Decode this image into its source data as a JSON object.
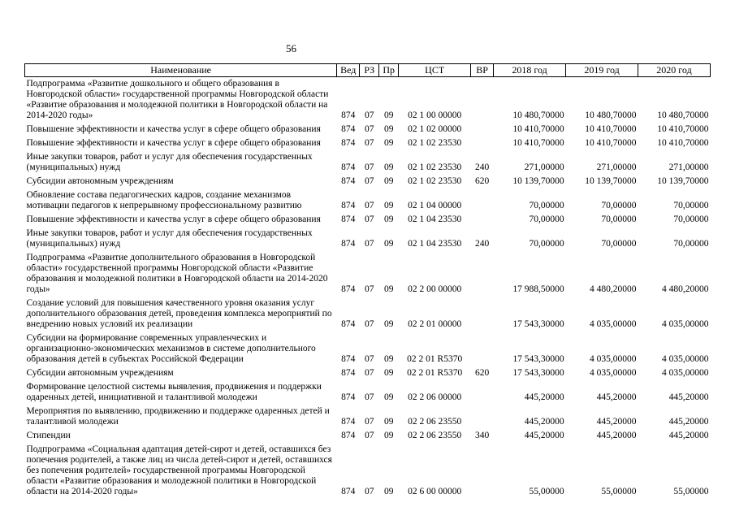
{
  "page": {
    "number": "56"
  },
  "table": {
    "headers": [
      "Наименование",
      "Вед",
      "РЗ",
      "Пр",
      "ЦСТ",
      "ВР",
      "2018 год",
      "2019 год",
      "2020 год"
    ],
    "rows": [
      {
        "name": "Подпрограмма «Развитие дошкольного и общего образования в Новгородской области» государственной программы Новгородской области «Развитие образования и молодежной политики в Новгородской области на 2014-2020 годы»",
        "ved": "874",
        "rz": "07",
        "pr": "09",
        "cst": "02 1 00 00000",
        "vr": "",
        "y2018": "10 480,70000",
        "y2019": "10 480,70000",
        "y2020": "10 480,70000"
      },
      {
        "name": "Повышение эффективности и качества услуг в сфере общего образования",
        "ved": "874",
        "rz": "07",
        "pr": "09",
        "cst": "02 1 02 00000",
        "vr": "",
        "y2018": "10 410,70000",
        "y2019": "10 410,70000",
        "y2020": "10 410,70000"
      },
      {
        "name": "Повышение эффективности и качества услуг в сфере общего образования",
        "ved": "874",
        "rz": "07",
        "pr": "09",
        "cst": "02 1 02 23530",
        "vr": "",
        "y2018": "10 410,70000",
        "y2019": "10 410,70000",
        "y2020": "10 410,70000"
      },
      {
        "name": "Иные закупки товаров, работ и услуг для обеспечения государственных (муниципальных) нужд",
        "ved": "874",
        "rz": "07",
        "pr": "09",
        "cst": "02 1 02 23530",
        "vr": "240",
        "y2018": "271,00000",
        "y2019": "271,00000",
        "y2020": "271,00000"
      },
      {
        "name": "Субсидии автономным учреждениям",
        "ved": "874",
        "rz": "07",
        "pr": "09",
        "cst": "02 1 02 23530",
        "vr": "620",
        "y2018": "10 139,70000",
        "y2019": "10 139,70000",
        "y2020": "10 139,70000"
      },
      {
        "name": "Обновление состава педагогических кадров, создание механизмов мотивации педагогов к непрерывному профессиональному развитию",
        "ved": "874",
        "rz": "07",
        "pr": "09",
        "cst": "02 1 04 00000",
        "vr": "",
        "y2018": "70,00000",
        "y2019": "70,00000",
        "y2020": "70,00000"
      },
      {
        "name": "Повышение эффективности и качества услуг в сфере общего образования",
        "ved": "874",
        "rz": "07",
        "pr": "09",
        "cst": "02 1 04 23530",
        "vr": "",
        "y2018": "70,00000",
        "y2019": "70,00000",
        "y2020": "70,00000"
      },
      {
        "name": "Иные закупки товаров, работ и услуг для обеспечения государственных (муниципальных) нужд",
        "ved": "874",
        "rz": "07",
        "pr": "09",
        "cst": "02 1 04 23530",
        "vr": "240",
        "y2018": "70,00000",
        "y2019": "70,00000",
        "y2020": "70,00000"
      },
      {
        "name": "Подпрограмма «Развитие дополнительного образования в Новгородской области» государственной программы Новгородской области «Развитие образования и молодежной политики в Новгородской области на 2014-2020 годы»",
        "ved": "874",
        "rz": "07",
        "pr": "09",
        "cst": "02 2 00 00000",
        "vr": "",
        "y2018": "17 988,50000",
        "y2019": "4 480,20000",
        "y2020": "4 480,20000"
      },
      {
        "name": "Создание условий для повышения качественного уровня оказания услуг дополнительного образования детей, проведения комплекса мероприятий по внедрению новых условий их реализации",
        "ved": "874",
        "rz": "07",
        "pr": "09",
        "cst": "02 2 01 00000",
        "vr": "",
        "y2018": "17 543,30000",
        "y2019": "4 035,00000",
        "y2020": "4 035,00000"
      },
      {
        "name": "Субсидии на формирование современных управленческих и организационно-экономических механизмов в системе дополнительного образования детей в субъектах Российской Федерации",
        "ved": "874",
        "rz": "07",
        "pr": "09",
        "cst": "02 2 01 R5370",
        "vr": "",
        "y2018": "17 543,30000",
        "y2019": "4 035,00000",
        "y2020": "4 035,00000"
      },
      {
        "name": "Субсидии автономным учреждениям",
        "ved": "874",
        "rz": "07",
        "pr": "09",
        "cst": "02 2 01 R5370",
        "vr": "620",
        "y2018": "17 543,30000",
        "y2019": "4 035,00000",
        "y2020": "4 035,00000"
      },
      {
        "name": "Формирование целостной системы выявления, продвижения и поддержки одаренных детей, инициативной и талантливой молодежи",
        "ved": "874",
        "rz": "07",
        "pr": "09",
        "cst": "02 2 06 00000",
        "vr": "",
        "y2018": "445,20000",
        "y2019": "445,20000",
        "y2020": "445,20000"
      },
      {
        "name": "Мероприятия по выявлению, продвижению и поддержке одаренных детей и талантливой молодежи",
        "ved": "874",
        "rz": "07",
        "pr": "09",
        "cst": "02 2 06 23550",
        "vr": "",
        "y2018": "445,20000",
        "y2019": "445,20000",
        "y2020": "445,20000"
      },
      {
        "name": "Стипендии",
        "ved": "874",
        "rz": "07",
        "pr": "09",
        "cst": "02 2 06 23550",
        "vr": "340",
        "y2018": "445,20000",
        "y2019": "445,20000",
        "y2020": "445,20000"
      },
      {
        "name": "Подпрограмма «Социальная адаптация детей-сирот и детей, оставшихся без попечения родителей, а также лиц из числа детей-сирот и детей, оставшихся без попечения родителей» государственной программы Новгородской области «Развитие образования и молодежной политики в Новгородской области на 2014-2020 годы»",
        "ved": "874",
        "rz": "07",
        "pr": "09",
        "cst": "02 6 00 00000",
        "vr": "",
        "y2018": "55,00000",
        "y2019": "55,00000",
        "y2020": "55,00000"
      }
    ]
  }
}
